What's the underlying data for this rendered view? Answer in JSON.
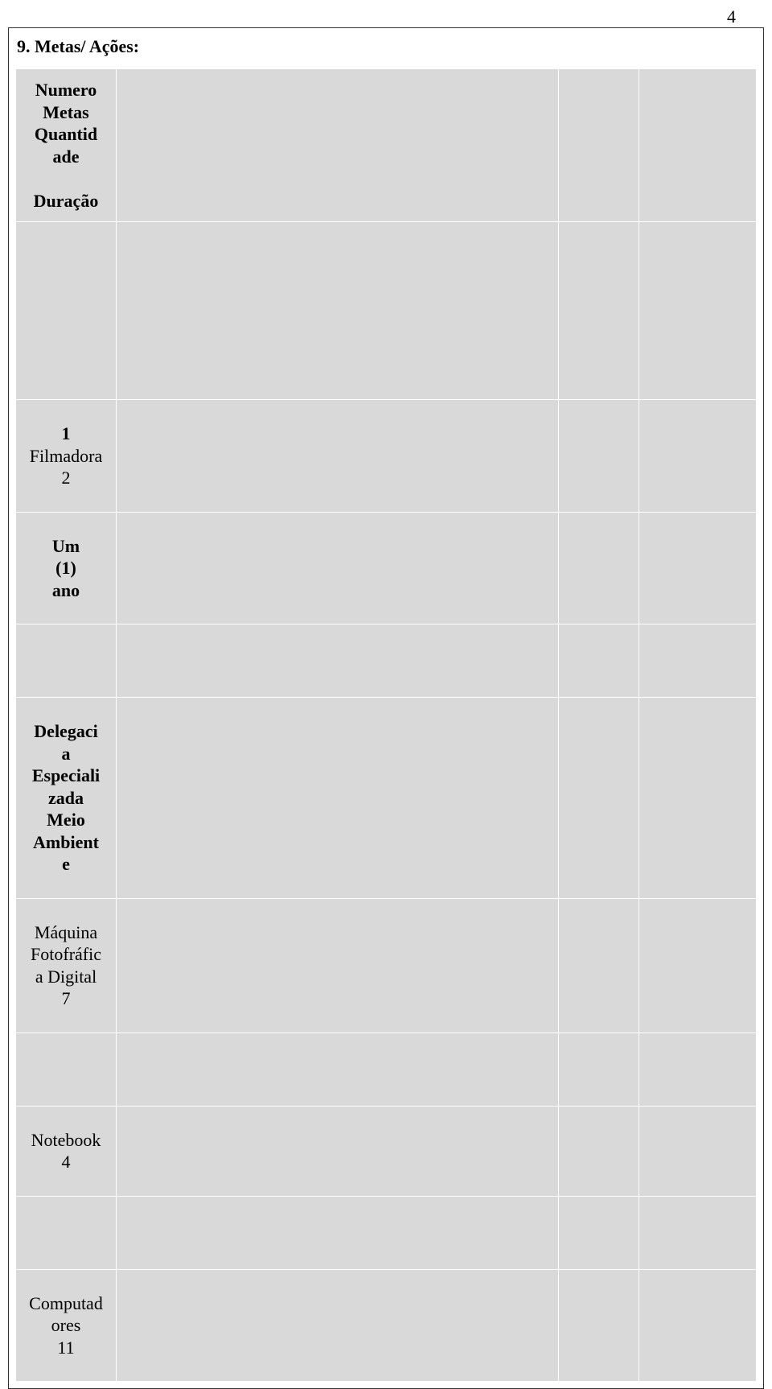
{
  "page_number": "4",
  "section_title": "9. Metas/ Ações:",
  "header": {
    "col1_line1": "Numero",
    "col1_line2": "Metas",
    "col1_line3": "Quantid",
    "col1_line4": "ade",
    "col1_line5": "Duração"
  },
  "rows": {
    "filmadora": {
      "line1": "1",
      "line2": "Filmadora",
      "line3": "2"
    },
    "um_ano": {
      "line1": "Um",
      "line2": "(1)",
      "line3": "ano"
    },
    "delegacia": {
      "line1": "Delegaci",
      "line2": "a",
      "line3": "Especiali",
      "line4": "zada",
      "line5": "Meio",
      "line6": "Ambient",
      "line7": "e"
    },
    "maquina": {
      "line1": "Máquina",
      "line2": "Fotofráfic",
      "line3": "a Digital",
      "line4": "7"
    },
    "notebook": {
      "line1": "Notebook",
      "line2": "4"
    },
    "computadores": {
      "line1": "Computad",
      "line2": "ores",
      "line3": "11"
    }
  }
}
